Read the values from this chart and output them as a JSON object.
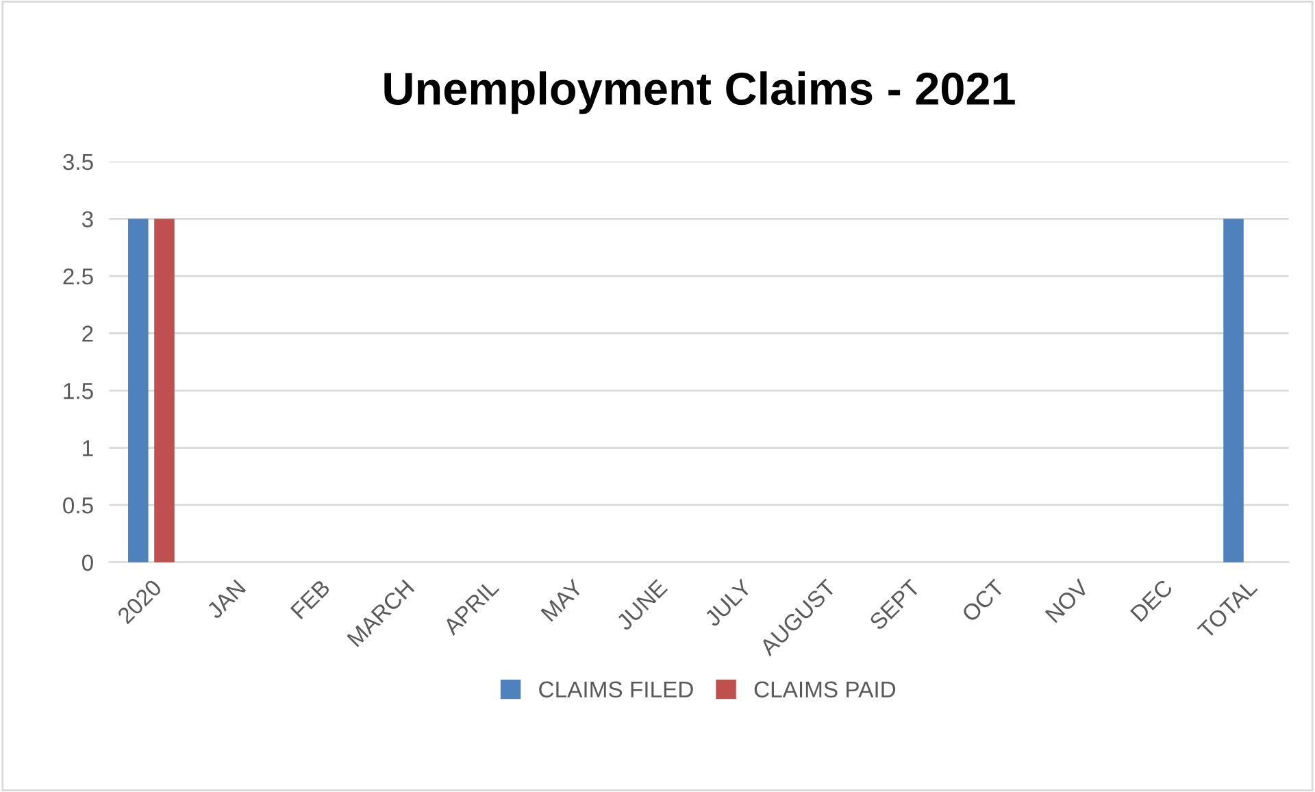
{
  "chart_data": {
    "type": "bar",
    "title": "Unemployment Claims - 2021",
    "categories": [
      "2020",
      "JAN",
      "FEB",
      "MARCH",
      "APRIL",
      "MAY",
      "JUNE",
      "JULY",
      "AUGUST",
      "SEPT",
      "OCT",
      "NOV",
      "DEC",
      "TOTAL"
    ],
    "series": [
      {
        "name": "CLAIMS FILED",
        "color": "#4f81bd",
        "values": [
          3,
          0,
          0,
          0,
          0,
          0,
          0,
          0,
          0,
          0,
          0,
          0,
          0,
          3
        ]
      },
      {
        "name": "CLAIMS PAID",
        "color": "#c0504d",
        "values": [
          3,
          0,
          0,
          0,
          0,
          0,
          0,
          0,
          0,
          0,
          0,
          0,
          0,
          0
        ]
      }
    ],
    "ylim": [
      0,
      3.5
    ],
    "yticks": [
      0,
      {
        "value": 0.5,
        "label": "0.5"
      },
      1,
      {
        "value": 1.5,
        "label": "1.5"
      },
      2,
      {
        "value": 2.5,
        "label": "2.5"
      },
      3,
      {
        "value": 3.5,
        "label": "3.5"
      }
    ],
    "grid": "y",
    "legend": "bottom"
  }
}
